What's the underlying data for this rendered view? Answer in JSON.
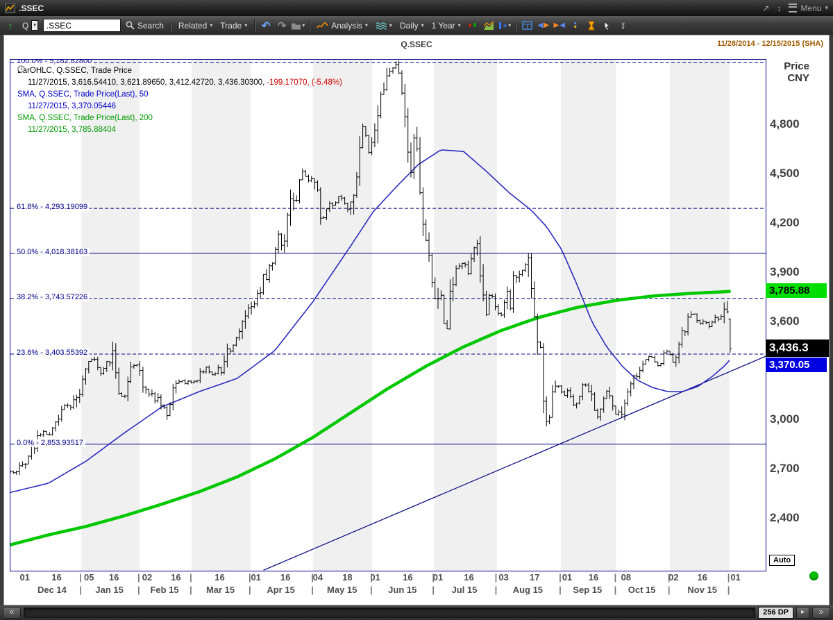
{
  "titlebar": {
    "app_title": ".SSEC",
    "menu_label": "Menu",
    "icons": {
      "popout": "↗",
      "resize": "↕",
      "caret": "▾"
    }
  },
  "toolbar": {
    "quote_letter": "Q",
    "symbol_value": ".SSEC",
    "search_label": "Search",
    "related_label": "Related",
    "trade_label": "Trade",
    "analysis_label": "Analysis",
    "interval_label": "Daily",
    "range_label": "1 Year",
    "icons": {
      "up_arrow": "↑",
      "caret": "▾",
      "undo": "↶",
      "redo": "↷",
      "left": "◀",
      "right": "▶",
      "up": "▲",
      "down": "▼",
      "more": "∨"
    }
  },
  "chart_header": {
    "title": "Q.SSEC",
    "date_range": "11/28/2014 - 12/15/2015 (SHA)"
  },
  "legend": {
    "ohlc_title": "BarOHLC, Q.SSEC, Trade Price",
    "ohlc_values": "11/27/2015, 3,616.54410, 3,621.89650, 3,412.42720, 3,436.30300,",
    "ohlc_change": "-199.17070, (-5.48%)",
    "sma50_title": "SMA, Q.SSEC, Trade Price(Last),  50",
    "sma50_values": "11/27/2015, 3,370.05446",
    "sma200_title": "SMA, Q.SSEC, Trade Price(Last),  200",
    "sma200_values": "11/27/2015, 3,785.88404"
  },
  "axis": {
    "price_label": "Price",
    "currency_label": "CNY",
    "auto_label": "Auto"
  },
  "bottom_bar": {
    "count_label": "256 DP",
    "scroll_left_icon": "«",
    "scroll_right_icon": "»",
    "step_right_icon": "▸"
  },
  "chart_data": {
    "type": "ohlc",
    "title": "Q.SSEC",
    "ylabel": "Price CNY",
    "y_range": [
      2082,
      5200
    ],
    "colors": {
      "sma50": "#2a2ac0",
      "sma200": "#00c800",
      "fib": "#000080",
      "bars": "#000000",
      "stripe": "#f0f0f0",
      "flag_green": "#00dd00",
      "flag_black": "#000000",
      "flag_blue": "#0000e0"
    },
    "y_ticks": [
      {
        "v": 4800,
        "label": "4,800"
      },
      {
        "v": 4500,
        "label": "4,500"
      },
      {
        "v": 4200,
        "label": "4,200"
      },
      {
        "v": 3900,
        "label": "3,900"
      },
      {
        "v": 3600,
        "label": "3,600"
      },
      {
        "v": 3000,
        "label": "3,000"
      },
      {
        "v": 2700,
        "label": "2,700"
      },
      {
        "v": 2400,
        "label": "2,400"
      }
    ],
    "fib_levels": [
      {
        "label": "100.0% - 5,182.82800",
        "value": 5182.828,
        "dashed": true
      },
      {
        "label": "61.8% - 4,293.19099",
        "value": 4293.19099,
        "dashed": true
      },
      {
        "label": "50.0% - 4,018.38163",
        "value": 4018.38163,
        "dashed": false
      },
      {
        "label": "38.2% - 3,743.57226",
        "value": 3743.57226,
        "dashed": true
      },
      {
        "label": "23.6% - 3,403.55392",
        "value": 3403.55392,
        "dashed": true
      },
      {
        "label": "0.0% - 2,853.93517",
        "value": 2853.93517,
        "dashed": false
      }
    ],
    "price_flags": [
      {
        "label": "3,785.88",
        "value": 3785.88,
        "bg": "#00dd00",
        "fg": "#000000",
        "large": false
      },
      {
        "label": "3,436.3",
        "value": 3436.3,
        "bg": "#000000",
        "fg": "#ffffff",
        "large": true
      },
      {
        "label": "3,370.05",
        "value": 3370.05,
        "bg": "#0000e0",
        "fg": "#ffffff",
        "large": false
      }
    ],
    "x_ticks": [
      {
        "t": 0.02,
        "label": "01"
      },
      {
        "t": 0.062,
        "label": "16"
      },
      {
        "t": 0.105,
        "label": "05"
      },
      {
        "t": 0.138,
        "label": "16"
      },
      {
        "t": 0.182,
        "label": "02"
      },
      {
        "t": 0.22,
        "label": "16"
      },
      {
        "t": 0.278,
        "label": "16"
      },
      {
        "t": 0.326,
        "label": "01"
      },
      {
        "t": 0.365,
        "label": "16"
      },
      {
        "t": 0.408,
        "label": "04"
      },
      {
        "t": 0.447,
        "label": "18"
      },
      {
        "t": 0.484,
        "label": "01"
      },
      {
        "t": 0.527,
        "label": "16"
      },
      {
        "t": 0.567,
        "label": "01"
      },
      {
        "t": 0.608,
        "label": "16"
      },
      {
        "t": 0.654,
        "label": "03"
      },
      {
        "t": 0.695,
        "label": "17"
      },
      {
        "t": 0.738,
        "label": "01"
      },
      {
        "t": 0.773,
        "label": "16"
      },
      {
        "t": 0.816,
        "label": "08"
      },
      {
        "t": 0.879,
        "label": "02"
      },
      {
        "t": 0.917,
        "label": "16"
      },
      {
        "t": 0.961,
        "label": "01"
      }
    ],
    "month_labels": [
      {
        "t": 0.056,
        "label": "Dec 14"
      },
      {
        "t": 0.132,
        "label": "Jan 15"
      },
      {
        "t": 0.205,
        "label": "Feb 15"
      },
      {
        "t": 0.279,
        "label": "Mar 15"
      },
      {
        "t": 0.359,
        "label": "Apr 15"
      },
      {
        "t": 0.44,
        "label": "May 15"
      },
      {
        "t": 0.52,
        "label": "Jun 15"
      },
      {
        "t": 0.602,
        "label": "Jul 15"
      },
      {
        "t": 0.686,
        "label": "Aug 15"
      },
      {
        "t": 0.765,
        "label": "Sep 15"
      },
      {
        "t": 0.837,
        "label": "Oct 15"
      },
      {
        "t": 0.917,
        "label": "Nov 15"
      }
    ],
    "month_boundaries": [
      0.094,
      0.171,
      0.24,
      0.318,
      0.401,
      0.479,
      0.561,
      0.644,
      0.729,
      0.802,
      0.873,
      0.952
    ],
    "trendline": {
      "t1": 0.335,
      "v1": 2085,
      "t2": 1.0,
      "v2": 3390
    },
    "bar_count": 240,
    "bars_end_t": 0.953,
    "last_bar": {
      "open": 3616.5441,
      "high": 3621.8965,
      "low": 3412.4272,
      "close": 3436.303
    },
    "close_anchors": [
      [
        0.0,
        2683
      ],
      [
        0.01,
        2702
      ],
      [
        0.022,
        2763
      ],
      [
        0.032,
        2855
      ],
      [
        0.042,
        2938
      ],
      [
        0.05,
        2902
      ],
      [
        0.058,
        2961
      ],
      [
        0.066,
        3061
      ],
      [
        0.074,
        3109
      ],
      [
        0.08,
        3062
      ],
      [
        0.088,
        3157
      ],
      [
        0.096,
        3235
      ],
      [
        0.105,
        3351
      ],
      [
        0.112,
        3374
      ],
      [
        0.12,
        3286
      ],
      [
        0.128,
        3342
      ],
      [
        0.136,
        3376
      ],
      [
        0.143,
        3116
      ],
      [
        0.152,
        3174
      ],
      [
        0.16,
        3352
      ],
      [
        0.168,
        3320
      ],
      [
        0.176,
        3210
      ],
      [
        0.184,
        3175
      ],
      [
        0.192,
        3136
      ],
      [
        0.2,
        3095
      ],
      [
        0.208,
        3049
      ],
      [
        0.216,
        3204
      ],
      [
        0.224,
        3246
      ],
      [
        0.232,
        3229
      ],
      [
        0.246,
        3240
      ],
      [
        0.258,
        3336
      ],
      [
        0.268,
        3280
      ],
      [
        0.278,
        3302
      ],
      [
        0.288,
        3435
      ],
      [
        0.298,
        3502
      ],
      [
        0.308,
        3577
      ],
      [
        0.316,
        3691
      ],
      [
        0.326,
        3748
      ],
      [
        0.336,
        3864
      ],
      [
        0.346,
        3994
      ],
      [
        0.354,
        4121
      ],
      [
        0.362,
        4084
      ],
      [
        0.37,
        4287
      ],
      [
        0.38,
        4394
      ],
      [
        0.388,
        4527
      ],
      [
        0.396,
        4441
      ],
      [
        0.404,
        4480
      ],
      [
        0.412,
        4229
      ],
      [
        0.42,
        4306
      ],
      [
        0.43,
        4333
      ],
      [
        0.438,
        4378
      ],
      [
        0.446,
        4283
      ],
      [
        0.454,
        4418
      ],
      [
        0.462,
        4658
      ],
      [
        0.468,
        4813
      ],
      [
        0.474,
        4620
      ],
      [
        0.48,
        4712
      ],
      [
        0.486,
        4828
      ],
      [
        0.494,
        5023
      ],
      [
        0.502,
        5106
      ],
      [
        0.51,
        5166
      ],
      [
        0.516,
        5062
      ],
      [
        0.522,
        4887
      ],
      [
        0.528,
        4478
      ],
      [
        0.534,
        4690
      ],
      [
        0.54,
        4576
      ],
      [
        0.546,
        4192
      ],
      [
        0.552,
        4053
      ],
      [
        0.558,
        3912
      ],
      [
        0.564,
        3687
      ],
      [
        0.57,
        3776
      ],
      [
        0.576,
        3507
      ],
      [
        0.582,
        3709
      ],
      [
        0.588,
        3970
      ],
      [
        0.594,
        3924
      ],
      [
        0.6,
        3957
      ],
      [
        0.606,
        3885
      ],
      [
        0.612,
        4026
      ],
      [
        0.618,
        4071
      ],
      [
        0.624,
        3726
      ],
      [
        0.63,
        3663
      ],
      [
        0.636,
        3789
      ],
      [
        0.642,
        3664
      ],
      [
        0.65,
        3623
      ],
      [
        0.656,
        3757
      ],
      [
        0.662,
        3695
      ],
      [
        0.668,
        3928
      ],
      [
        0.674,
        3886
      ],
      [
        0.68,
        3965
      ],
      [
        0.686,
        3994
      ],
      [
        0.69,
        3748
      ],
      [
        0.696,
        3580
      ],
      [
        0.7,
        3508
      ],
      [
        0.704,
        3210
      ],
      [
        0.708,
        2965
      ],
      [
        0.712,
        2927
      ],
      [
        0.716,
        3083
      ],
      [
        0.72,
        3232
      ],
      [
        0.726,
        3206
      ],
      [
        0.733,
        3166
      ],
      [
        0.74,
        3160
      ],
      [
        0.746,
        3096
      ],
      [
        0.752,
        3080
      ],
      [
        0.758,
        3243
      ],
      [
        0.764,
        3200
      ],
      [
        0.77,
        3115
      ],
      [
        0.776,
        3005
      ],
      [
        0.782,
        3086
      ],
      [
        0.788,
        3186
      ],
      [
        0.794,
        3143
      ],
      [
        0.8,
        3038
      ],
      [
        0.808,
        3053
      ],
      [
        0.816,
        3143
      ],
      [
        0.824,
        3262
      ],
      [
        0.832,
        3287
      ],
      [
        0.84,
        3338
      ],
      [
        0.846,
        3391
      ],
      [
        0.852,
        3373
      ],
      [
        0.858,
        3320
      ],
      [
        0.864,
        3386
      ],
      [
        0.87,
        3429
      ],
      [
        0.876,
        3383
      ],
      [
        0.879,
        3325
      ],
      [
        0.884,
        3459
      ],
      [
        0.89,
        3522
      ],
      [
        0.896,
        3590
      ],
      [
        0.902,
        3647
      ],
      [
        0.908,
        3633
      ],
      [
        0.914,
        3580
      ],
      [
        0.92,
        3605
      ],
      [
        0.926,
        3568
      ],
      [
        0.932,
        3610
      ],
      [
        0.938,
        3617
      ],
      [
        0.944,
        3636
      ],
      [
        0.95,
        3630
      ],
      [
        0.953,
        3436
      ]
    ],
    "sma50_anchors": [
      [
        0.0,
        2560
      ],
      [
        0.05,
        2615
      ],
      [
        0.1,
        2750
      ],
      [
        0.15,
        2920
      ],
      [
        0.2,
        3080
      ],
      [
        0.25,
        3175
      ],
      [
        0.3,
        3255
      ],
      [
        0.35,
        3425
      ],
      [
        0.4,
        3720
      ],
      [
        0.45,
        4060
      ],
      [
        0.48,
        4270
      ],
      [
        0.51,
        4420
      ],
      [
        0.54,
        4560
      ],
      [
        0.57,
        4650
      ],
      [
        0.6,
        4640
      ],
      [
        0.63,
        4520
      ],
      [
        0.66,
        4390
      ],
      [
        0.69,
        4280
      ],
      [
        0.71,
        4180
      ],
      [
        0.73,
        4040
      ],
      [
        0.75,
        3830
      ],
      [
        0.77,
        3600
      ],
      [
        0.79,
        3445
      ],
      [
        0.81,
        3330
      ],
      [
        0.83,
        3245
      ],
      [
        0.85,
        3200
      ],
      [
        0.87,
        3175
      ],
      [
        0.89,
        3175
      ],
      [
        0.91,
        3205
      ],
      [
        0.93,
        3270
      ],
      [
        0.945,
        3330
      ],
      [
        0.953,
        3370
      ]
    ],
    "sma200_anchors": [
      [
        0.0,
        2240
      ],
      [
        0.05,
        2300
      ],
      [
        0.1,
        2352
      ],
      [
        0.15,
        2416
      ],
      [
        0.2,
        2487
      ],
      [
        0.25,
        2564
      ],
      [
        0.3,
        2654
      ],
      [
        0.35,
        2764
      ],
      [
        0.4,
        2894
      ],
      [
        0.45,
        3044
      ],
      [
        0.5,
        3194
      ],
      [
        0.55,
        3329
      ],
      [
        0.6,
        3448
      ],
      [
        0.65,
        3548
      ],
      [
        0.7,
        3628
      ],
      [
        0.75,
        3688
      ],
      [
        0.8,
        3730
      ],
      [
        0.85,
        3758
      ],
      [
        0.9,
        3774
      ],
      [
        0.953,
        3786
      ]
    ]
  }
}
